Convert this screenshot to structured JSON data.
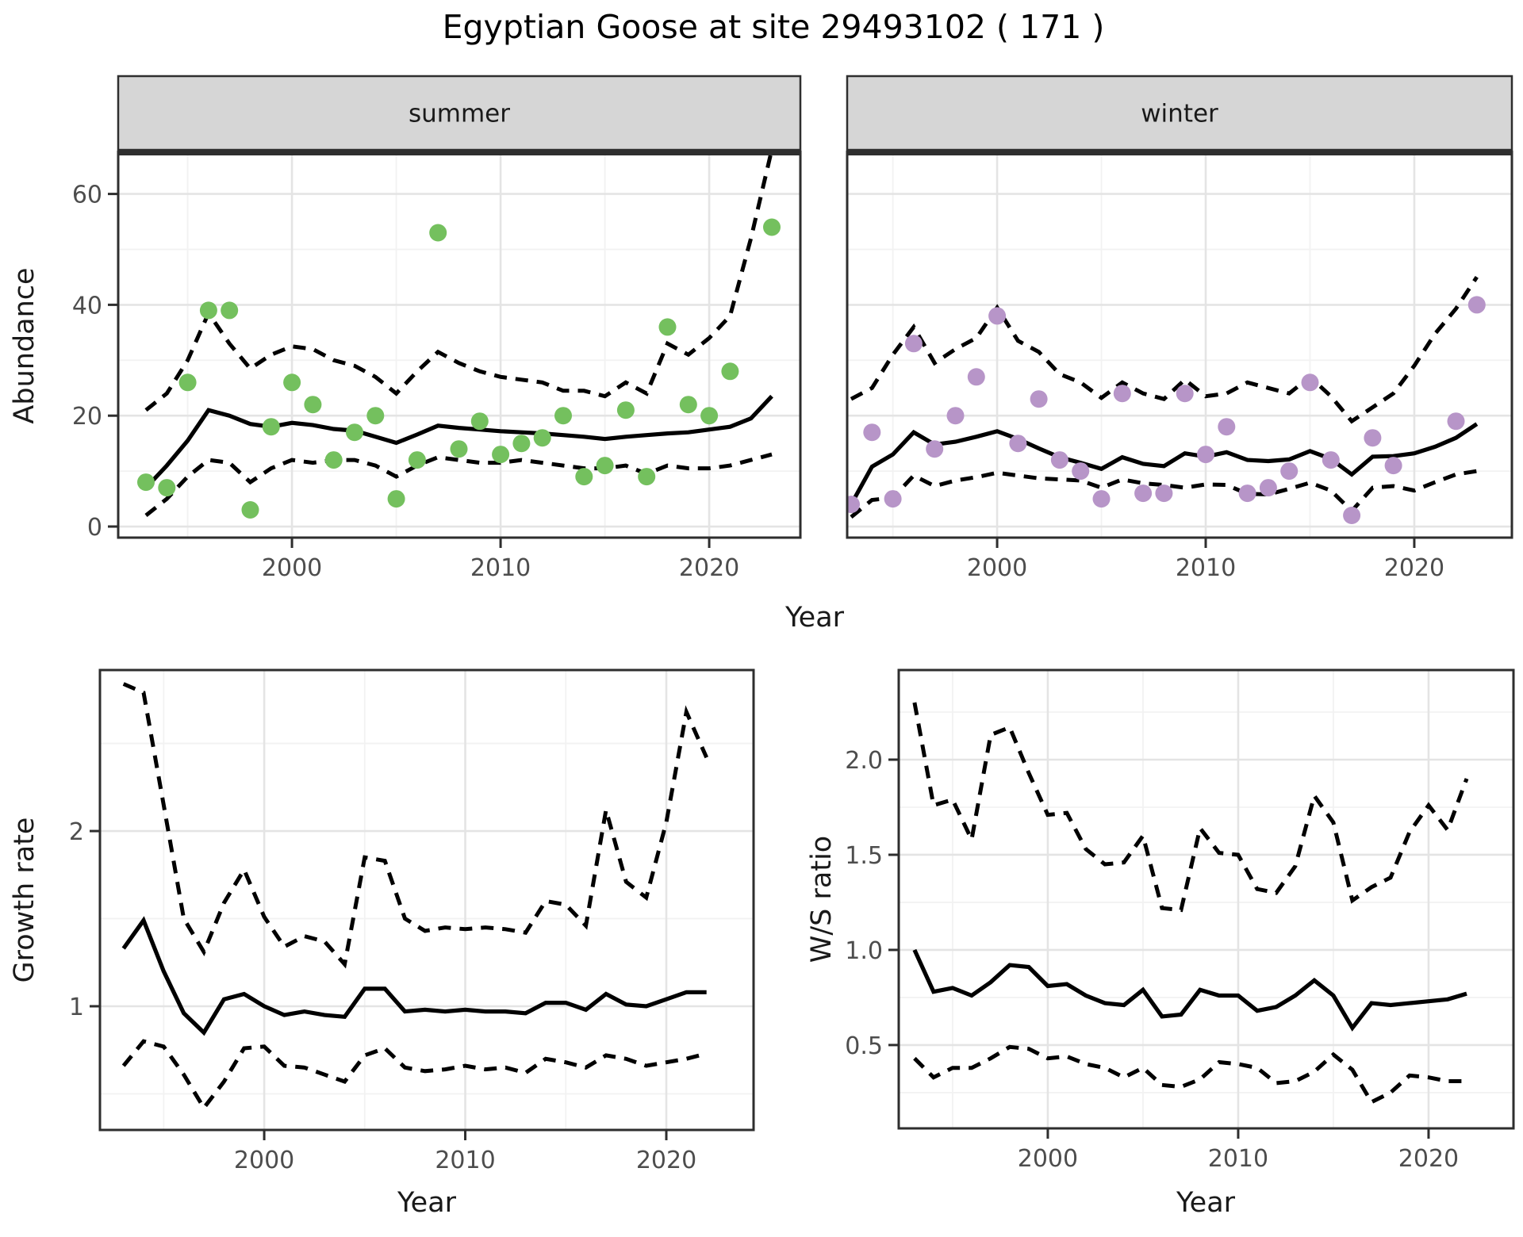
{
  "title": "Egyptian Goose at site 29493102 ( 171 )",
  "colors": {
    "summer_points": "#74c05e",
    "winter_points": "#b795c8",
    "fit_line": "#000000",
    "ci_line": "#000000",
    "grid_major": "#e4e4e4",
    "grid_minor": "#f2f2f2",
    "strip_bg": "#d6d6d6",
    "panel_border": "#2e2e2e",
    "tick_text": "#4d4d4d"
  },
  "chart_data": [
    {
      "id": "abundance-summer",
      "type": "scatter",
      "facet_label": "summer",
      "xlabel": "Year",
      "ylabel": "Abundance",
      "legend": "none",
      "grid": "on",
      "x_ticks": [
        2000,
        2010,
        2020
      ],
      "x_tick_labels": [
        "2000",
        "2010",
        "2020"
      ],
      "x_minor": [
        1995,
        2005,
        2015
      ],
      "y_ticks": [
        0,
        20,
        40,
        60
      ],
      "y_tick_labels": [
        "0",
        "20",
        "40",
        "60"
      ],
      "y_minor": [
        10,
        30,
        50
      ],
      "xlim": [
        1991.67,
        2024.37
      ],
      "ylim": [
        -2,
        67.38
      ],
      "point_color": "#74c05e",
      "points": [
        [
          1993,
          8
        ],
        [
          1994,
          7
        ],
        [
          1995,
          26
        ],
        [
          1996,
          39
        ],
        [
          1997,
          39
        ],
        [
          1998,
          3
        ],
        [
          1999,
          18
        ],
        [
          2000,
          26
        ],
        [
          2001,
          22
        ],
        [
          2002,
          12
        ],
        [
          2003,
          17
        ],
        [
          2004,
          20
        ],
        [
          2005,
          5
        ],
        [
          2006,
          12
        ],
        [
          2007,
          53
        ],
        [
          2008,
          14
        ],
        [
          2009,
          19
        ],
        [
          2010,
          13
        ],
        [
          2011,
          15
        ],
        [
          2012,
          16
        ],
        [
          2013,
          20
        ],
        [
          2014,
          9
        ],
        [
          2015,
          11
        ],
        [
          2016,
          21
        ],
        [
          2017,
          9
        ],
        [
          2018,
          36
        ],
        [
          2019,
          22
        ],
        [
          2020,
          20
        ],
        [
          2021,
          28
        ],
        [
          2023,
          54
        ]
      ],
      "line_years": [
        1993,
        1994,
        1995,
        1996,
        1997,
        1998,
        1999,
        2000,
        2001,
        2002,
        2003,
        2004,
        2005,
        2006,
        2007,
        2008,
        2009,
        2010,
        2011,
        2012,
        2013,
        2014,
        2015,
        2016,
        2017,
        2018,
        2019,
        2020,
        2021,
        2022,
        2023
      ],
      "fit": [
        7.0,
        11.0,
        15.5,
        21.0,
        20.0,
        18.5,
        18.0,
        18.7,
        18.3,
        17.6,
        17.3,
        16.2,
        15.1,
        16.6,
        18.2,
        17.8,
        17.5,
        17.2,
        17.0,
        16.8,
        16.5,
        16.2,
        15.8,
        16.2,
        16.5,
        16.8,
        17.0,
        17.5,
        18.0,
        19.5,
        23.5
      ],
      "ci_upper": [
        21,
        24,
        30,
        38.5,
        33,
        28.5,
        31,
        32.5,
        32,
        30,
        29,
        27,
        24,
        28,
        31.5,
        29.5,
        28,
        27,
        26.5,
        26,
        24.5,
        24.5,
        23.5,
        26,
        24,
        33,
        31,
        34,
        38,
        52,
        68
      ],
      "ci_lower": [
        2,
        5,
        9,
        12,
        11.5,
        8,
        10.5,
        12,
        11.5,
        12,
        12,
        11,
        9,
        11,
        12.5,
        12,
        11.5,
        11.5,
        12,
        11.5,
        11,
        10.5,
        10.5,
        11,
        9.5,
        11,
        10.5,
        10.5,
        11,
        12,
        13
      ]
    },
    {
      "id": "abundance-winter",
      "type": "scatter",
      "facet_label": "winter",
      "xlabel": "Year",
      "ylabel": "Abundance",
      "legend": "none",
      "grid": "on",
      "x_ticks": [
        2000,
        2010,
        2020
      ],
      "x_tick_labels": [
        "2000",
        "2010",
        "2020"
      ],
      "x_minor": [
        1995,
        2005,
        2015
      ],
      "y_ticks": [
        0,
        20,
        40,
        60
      ],
      "y_tick_labels": [
        "0",
        "20",
        "40",
        "60"
      ],
      "y_minor": [
        10,
        30,
        50
      ],
      "xlim": [
        1992.81,
        2024.68
      ],
      "ylim": [
        -2,
        67.38
      ],
      "point_color": "#b795c8",
      "points": [
        [
          1993,
          4
        ],
        [
          1994,
          17
        ],
        [
          1995,
          5
        ],
        [
          1996,
          33
        ],
        [
          1997,
          14
        ],
        [
          1998,
          20
        ],
        [
          1999,
          27
        ],
        [
          2000,
          38
        ],
        [
          2001,
          15
        ],
        [
          2002,
          23
        ],
        [
          2003,
          12
        ],
        [
          2004,
          10
        ],
        [
          2005,
          5
        ],
        [
          2006,
          24
        ],
        [
          2007,
          6
        ],
        [
          2008,
          6
        ],
        [
          2009,
          24
        ],
        [
          2010,
          13
        ],
        [
          2011,
          18
        ],
        [
          2012,
          6
        ],
        [
          2013,
          7
        ],
        [
          2014,
          10
        ],
        [
          2015,
          26
        ],
        [
          2016,
          12
        ],
        [
          2017,
          2
        ],
        [
          2018,
          16
        ],
        [
          2019,
          11
        ],
        [
          2022,
          19
        ],
        [
          2023,
          40
        ]
      ],
      "line_years": [
        1993,
        1994,
        1995,
        1996,
        1997,
        1998,
        1999,
        2000,
        2001,
        2002,
        2003,
        2004,
        2005,
        2006,
        2007,
        2008,
        2009,
        2010,
        2011,
        2012,
        2013,
        2014,
        2015,
        2016,
        2017,
        2018,
        2019,
        2020,
        2021,
        2022,
        2023
      ],
      "fit": [
        4.0,
        10.8,
        13.0,
        17.0,
        14.8,
        15.3,
        16.2,
        17.2,
        15.8,
        14.1,
        12.5,
        11.5,
        10.4,
        12.5,
        11.3,
        10.9,
        13.2,
        12.6,
        13.4,
        12.0,
        11.8,
        12.1,
        13.6,
        12.2,
        9.4,
        12.6,
        12.7,
        13.2,
        14.4,
        16.0,
        18.5
      ],
      "ci_upper": [
        23,
        25,
        31,
        36,
        29.5,
        32,
        34,
        39.5,
        33.5,
        31.5,
        27.5,
        26,
        23.2,
        26,
        24,
        23,
        26.5,
        23.5,
        24,
        26,
        25,
        24,
        27,
        23.5,
        19,
        21.5,
        24,
        29,
        34.8,
        39.3,
        45
      ],
      "ci_lower": [
        1.7,
        4.8,
        5.2,
        9.2,
        7.3,
        8.3,
        8.9,
        9.7,
        9.2,
        8.7,
        8.5,
        8.3,
        7.0,
        8.5,
        7.8,
        7.5,
        7.0,
        7.6,
        7.5,
        5.9,
        5.8,
        6.8,
        7.9,
        6.5,
        2.8,
        7.0,
        7.3,
        6.5,
        8.0,
        9.4,
        10.0
      ]
    },
    {
      "id": "growth-rate",
      "type": "line",
      "facet_label": "",
      "xlabel": "Year",
      "ylabel": "Growth rate",
      "legend": "none",
      "grid": "on",
      "x_ticks": [
        2000,
        2010,
        2020
      ],
      "x_tick_labels": [
        "2000",
        "2010",
        "2020"
      ],
      "x_minor": [
        1995,
        2005,
        2015
      ],
      "y_ticks": [
        1,
        2
      ],
      "y_tick_labels": [
        "1",
        "2"
      ],
      "y_minor": [
        0.5,
        1.5,
        2.5
      ],
      "xlim": [
        1991.83,
        2024.34
      ],
      "ylim": [
        0.294,
        2.919
      ],
      "point_color": "none",
      "points": [],
      "line_years": [
        1993,
        1994,
        1995,
        1996,
        1997,
        1998,
        1999,
        2000,
        2001,
        2002,
        2003,
        2004,
        2005,
        2006,
        2007,
        2008,
        2009,
        2010,
        2011,
        2012,
        2013,
        2014,
        2015,
        2016,
        2017,
        2018,
        2019,
        2020,
        2021,
        2022
      ],
      "fit": [
        1.33,
        1.49,
        1.2,
        0.96,
        0.85,
        1.04,
        1.07,
        1.0,
        0.95,
        0.97,
        0.95,
        0.94,
        1.1,
        1.1,
        0.97,
        0.98,
        0.97,
        0.98,
        0.97,
        0.97,
        0.96,
        1.02,
        1.02,
        0.98,
        1.07,
        1.01,
        1.0,
        1.04,
        1.08,
        1.08
      ],
      "ci_upper": [
        2.84,
        2.79,
        2.15,
        1.5,
        1.31,
        1.59,
        1.78,
        1.51,
        1.34,
        1.4,
        1.37,
        1.24,
        1.85,
        1.83,
        1.5,
        1.43,
        1.45,
        1.44,
        1.45,
        1.44,
        1.42,
        1.6,
        1.58,
        1.46,
        2.12,
        1.71,
        1.62,
        2.05,
        2.68,
        2.42
      ],
      "ci_lower": [
        0.66,
        0.8,
        0.77,
        0.61,
        0.42,
        0.57,
        0.76,
        0.77,
        0.66,
        0.65,
        0.61,
        0.57,
        0.72,
        0.76,
        0.65,
        0.63,
        0.64,
        0.66,
        0.64,
        0.65,
        0.62,
        0.7,
        0.68,
        0.65,
        0.72,
        0.7,
        0.66,
        0.68,
        0.7,
        0.73
      ]
    },
    {
      "id": "ws-ratio",
      "type": "line",
      "facet_label": "",
      "xlabel": "Year",
      "ylabel": "W/S ratio",
      "legend": "none",
      "grid": "on",
      "x_ticks": [
        2000,
        2010,
        2020
      ],
      "x_tick_labels": [
        "2000",
        "2010",
        "2020"
      ],
      "x_minor": [
        1995,
        2005,
        2015
      ],
      "y_ticks": [
        0.5,
        1.0,
        1.5,
        2.0
      ],
      "y_tick_labels": [
        "0.5",
        "1.0",
        "1.5",
        "2.0"
      ],
      "y_minor": [
        0.25,
        0.75,
        1.25,
        1.75,
        2.25
      ],
      "xlim": [
        1992.17,
        2024.46
      ],
      "ylim": [
        0.062,
        2.471
      ],
      "point_color": "none",
      "points": [],
      "line_years": [
        1993,
        1994,
        1995,
        1996,
        1997,
        1998,
        1999,
        2000,
        2001,
        2002,
        2003,
        2004,
        2005,
        2006,
        2007,
        2008,
        2009,
        2010,
        2011,
        2012,
        2013,
        2014,
        2015,
        2016,
        2017,
        2018,
        2019,
        2020,
        2021,
        2022
      ],
      "fit": [
        1.0,
        0.78,
        0.8,
        0.76,
        0.83,
        0.92,
        0.91,
        0.81,
        0.82,
        0.76,
        0.72,
        0.71,
        0.79,
        0.65,
        0.66,
        0.79,
        0.76,
        0.76,
        0.68,
        0.7,
        0.76,
        0.84,
        0.76,
        0.59,
        0.72,
        0.71,
        0.72,
        0.73,
        0.74,
        0.77
      ],
      "ci_upper": [
        2.3,
        1.76,
        1.79,
        1.58,
        2.13,
        2.17,
        1.93,
        1.71,
        1.72,
        1.53,
        1.45,
        1.46,
        1.6,
        1.22,
        1.21,
        1.64,
        1.51,
        1.5,
        1.32,
        1.3,
        1.44,
        1.81,
        1.67,
        1.26,
        1.33,
        1.38,
        1.62,
        1.76,
        1.63,
        1.9
      ],
      "ci_lower": [
        0.43,
        0.33,
        0.38,
        0.38,
        0.43,
        0.49,
        0.48,
        0.43,
        0.44,
        0.4,
        0.38,
        0.33,
        0.38,
        0.29,
        0.28,
        0.32,
        0.41,
        0.4,
        0.38,
        0.3,
        0.31,
        0.36,
        0.45,
        0.37,
        0.2,
        0.25,
        0.34,
        0.33,
        0.31,
        0.31
      ]
    }
  ]
}
